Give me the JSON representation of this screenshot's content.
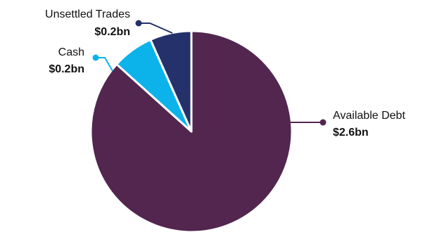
{
  "chart_data": {
    "type": "pie",
    "slices": [
      {
        "label": "Available Debt",
        "value_label": "$2.6bn",
        "value": 2.6,
        "color": "#52264f"
      },
      {
        "label": "Cash",
        "value_label": "$0.2bn",
        "value": 0.2,
        "color": "#0bb3ea"
      },
      {
        "label": "Unsettled Trades",
        "value_label": "$0.2bn",
        "value": 0.2,
        "color": "#24316a"
      }
    ],
    "start_angle_deg": 0,
    "direction": "clockwise",
    "slice_border_color": "#ffffff",
    "leader_colors": {
      "Available Debt": "#52264f",
      "Cash": "#0bb3ea",
      "Unsettled Trades": "#24316a"
    }
  }
}
